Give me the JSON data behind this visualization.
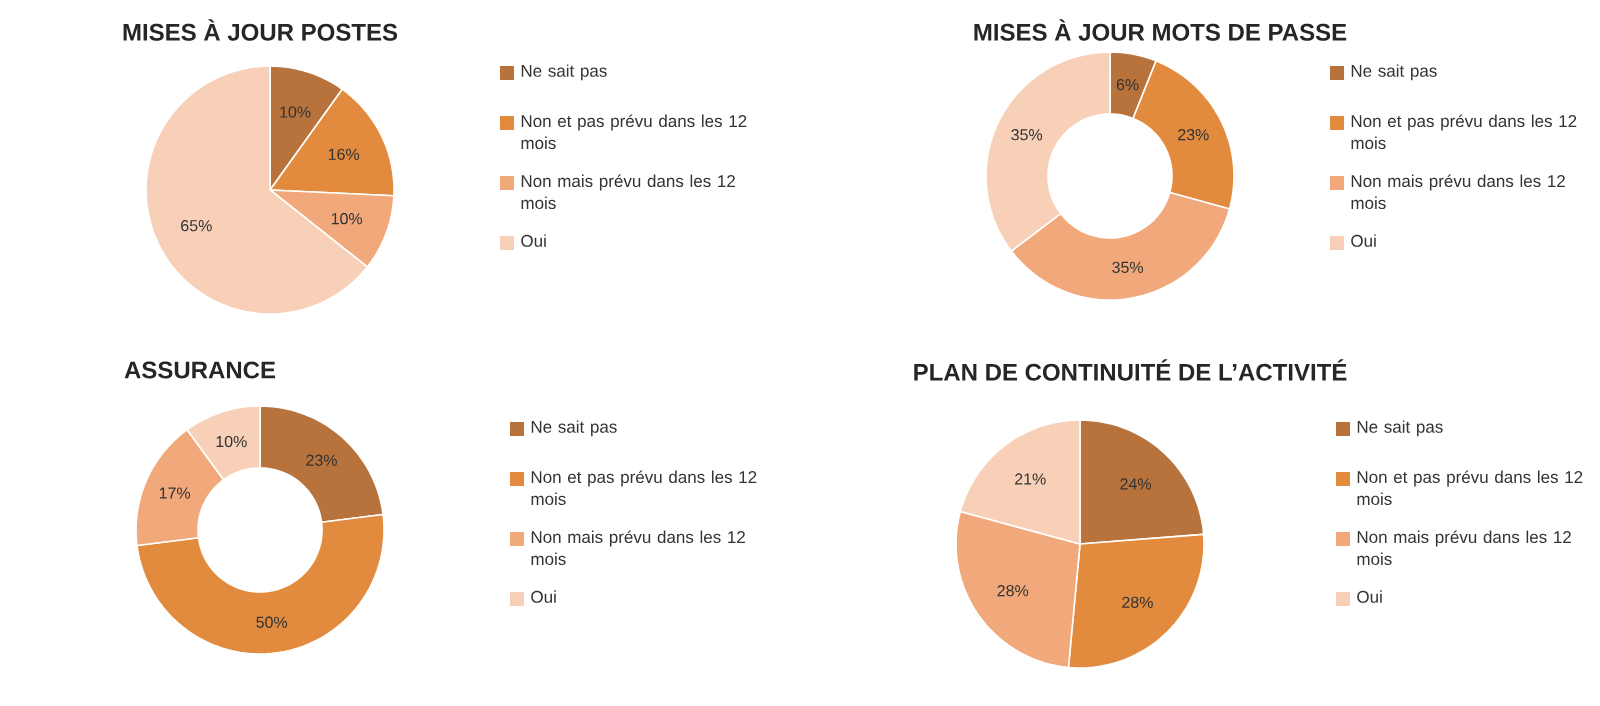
{
  "chart_data": [
    {
      "type": "pie",
      "title": "MISES À JOUR POSTES",
      "categories": [
        "Ne sait pas",
        "Non et pas prévu dans les 12 mois",
        "Non mais prévu dans les 12 mois",
        "Oui"
      ],
      "values": [
        10,
        16,
        10,
        65
      ],
      "value_labels": [
        "10%",
        "16%",
        "10%",
        "65%"
      ],
      "colors": [
        "#b8733c",
        "#e28b3e",
        "#f1a87a",
        "#f8d0b8"
      ],
      "legend": "right"
    },
    {
      "type": "donut",
      "title": "MISES À JOUR MOTS DE PASSE",
      "categories": [
        "Ne sait pas",
        "Non et pas prévu dans les 12 mois",
        "Non mais prévu dans les 12 mois",
        "Oui"
      ],
      "values": [
        6,
        23,
        35,
        35
      ],
      "value_labels": [
        "6%",
        "23%",
        "35%",
        "35%"
      ],
      "colors": [
        "#b8733c",
        "#e28b3e",
        "#f1a87a",
        "#f8d0b8"
      ],
      "legend": "right"
    },
    {
      "type": "donut",
      "title": "ASSURANCE",
      "categories": [
        "Ne sait pas",
        "Non et pas prévu dans les 12 mois",
        "Non mais prévu dans les 12 mois",
        "Oui"
      ],
      "values": [
        23,
        50,
        17,
        10
      ],
      "value_labels": [
        "23%",
        "50%",
        "17%",
        "10%"
      ],
      "colors": [
        "#b8733c",
        "#e28b3e",
        "#f1a87a",
        "#f8d0b8"
      ],
      "legend": "right"
    },
    {
      "type": "pie",
      "title": "PLAN DE CONTINUITÉ DE L’ACTIVITÉ",
      "categories": [
        "Ne sait pas",
        "Non et pas prévu dans les 12 mois",
        "Non mais prévu dans les 12 mois",
        "Oui"
      ],
      "values": [
        24,
        28,
        28,
        21
      ],
      "value_labels": [
        "24%",
        "28%",
        "28%",
        "21%"
      ],
      "colors": [
        "#b8733c",
        "#e28b3e",
        "#f1a87a",
        "#f8d0b8"
      ],
      "legend": "right"
    }
  ]
}
